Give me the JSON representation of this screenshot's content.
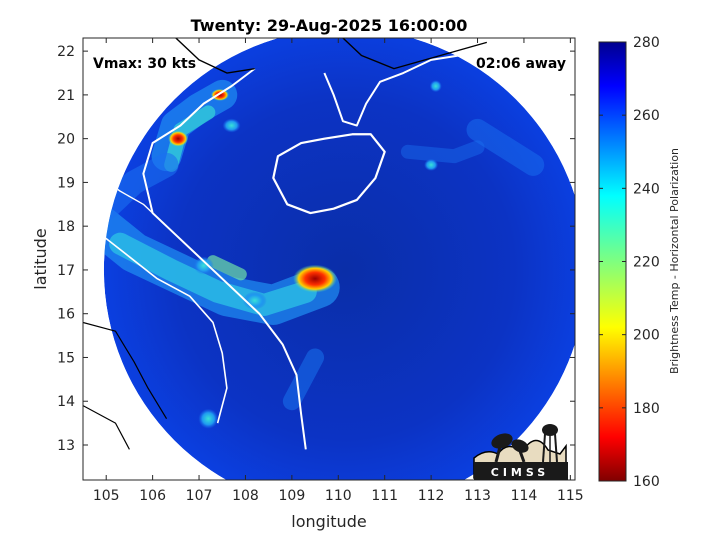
{
  "title": "Twenty: 29-Aug-2025 16:00:00",
  "vmax_label": "Vmax: 30 kts",
  "time_away": "02:06 away",
  "xlabel": "longitude",
  "ylabel": "latitude",
  "x_ticks": [
    "105",
    "106",
    "107",
    "108",
    "109",
    "110",
    "111",
    "112",
    "113",
    "114",
    "115"
  ],
  "y_ticks": [
    "22",
    "21",
    "20",
    "19",
    "18",
    "17",
    "16",
    "15",
    "14",
    "13"
  ],
  "colorbar": {
    "label": "Brightness Temp - Horizontal Polarization",
    "ticks": [
      "280",
      "260",
      "240",
      "220",
      "200",
      "180",
      "160"
    ],
    "range": [
      160,
      280
    ],
    "colormap": "jet"
  },
  "logo_text": "CIMSS",
  "map": {
    "lon_range": [
      104.5,
      115.1
    ],
    "lat_range": [
      12.2,
      22.3
    ],
    "swath_center": [
      110.15,
      17.0
    ],
    "swath_radius_deg": 5.2,
    "background_temp_k": 268,
    "storm_center": [
      109.5,
      16.8
    ],
    "colors": {
      "coastline": "#ffffff",
      "border": "#000000",
      "page": "#ffffff"
    }
  }
}
